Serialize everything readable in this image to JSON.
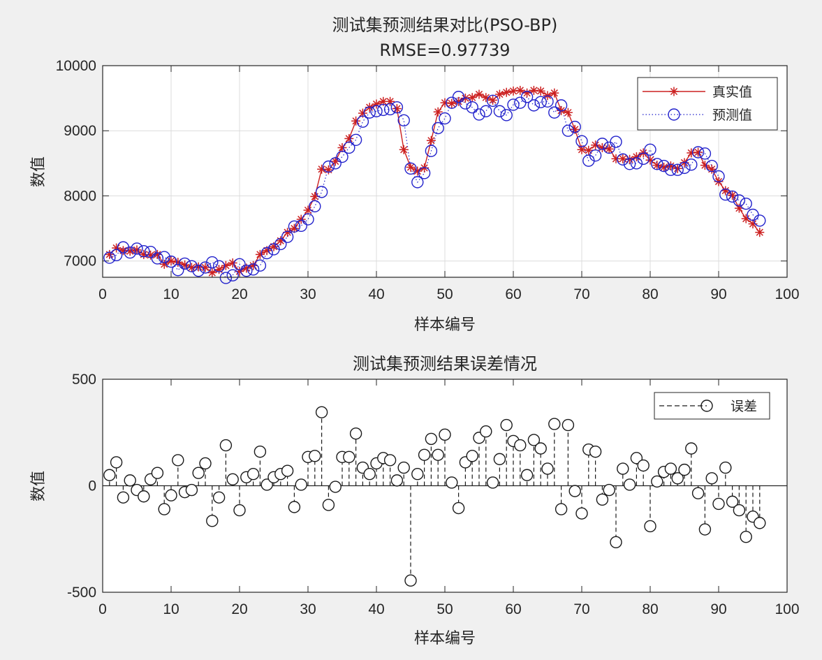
{
  "chart_data": [
    {
      "type": "line",
      "title": "测试集预测结果对比(PSO-BP)",
      "subtitle": "RMSE=0.97739",
      "xlabel": "样本编号",
      "ylabel": "数值",
      "xlim": [
        0,
        100
      ],
      "ylim": [
        6750,
        10000
      ],
      "xticks": [
        0,
        10,
        20,
        30,
        40,
        50,
        60,
        70,
        80,
        90,
        100
      ],
      "yticks": [
        7000,
        8000,
        9000,
        10000
      ],
      "grid": true,
      "legend_position": "top-right",
      "series": [
        {
          "name": "真实值",
          "color": "#cc2020",
          "style": "solid",
          "marker": "asterisk",
          "values": [
            7100,
            7200,
            7160,
            7150,
            7170,
            7100,
            7090,
            7100,
            6950,
            7000,
            6980,
            6940,
            6900,
            6910,
            6900,
            6820,
            6870,
            6930,
            6970,
            6840,
            6890,
            6930,
            7100,
            7160,
            7220,
            7310,
            7440,
            7500,
            7640,
            7780,
            7990,
            8410,
            8400,
            8530,
            8740,
            8880,
            9150,
            9270,
            9360,
            9410,
            9450,
            9450,
            9340,
            8710,
            8440,
            8380,
            8430,
            8850,
            9290,
            9430,
            9420,
            9450,
            9500,
            9510,
            9560,
            9510,
            9470,
            9560,
            9590,
            9610,
            9620,
            9580,
            9620,
            9610,
            9540,
            9580,
            9310,
            9280,
            9020,
            8710,
            8700,
            8780,
            8740,
            8720,
            8570,
            8570,
            8560,
            8600,
            8660,
            8550,
            8470,
            8440,
            8460,
            8420,
            8510,
            8660,
            8670,
            8470,
            8410,
            8220,
            8080,
            8010,
            7810,
            7650,
            7570,
            7440
          ]
        },
        {
          "name": "预测值",
          "color": "#2222cc",
          "style": "dotted",
          "marker": "circle",
          "values": [
            7050,
            7090,
            7210,
            7130,
            7190,
            7150,
            7140,
            7040,
            7060,
            6990,
            6860,
            6960,
            6920,
            6850,
            6900,
            6980,
            6920,
            6740,
            6780,
            6950,
            6850,
            6870,
            6930,
            7120,
            7180,
            7260,
            7370,
            7530,
            7540,
            7640,
            7840,
            8060,
            8450,
            8500,
            8600,
            8740,
            8860,
            9140,
            9280,
            9300,
            9320,
            9330,
            9360,
            9160,
            8420,
            8210,
            8350,
            8690,
            9040,
            9190,
            9430,
            9520,
            9420,
            9360,
            9250,
            9300,
            9460,
            9300,
            9240,
            9400,
            9430,
            9520,
            9390,
            9440,
            9450,
            9280,
            9390,
            9000,
            9060,
            8840,
            8540,
            8620,
            8800,
            8740,
            8830,
            8560,
            8490,
            8500,
            8570,
            8710,
            8490,
            8460,
            8400,
            8400,
            8430,
            8480,
            8670,
            8650,
            8460,
            8300,
            8020,
            7990,
            7930,
            7880,
            7710,
            7620
          ]
        }
      ]
    },
    {
      "type": "stem",
      "title": "测试集预测结果误差情况",
      "xlabel": "样本编号",
      "ylabel": "数值",
      "xlim": [
        0,
        100
      ],
      "ylim": [
        -500,
        500
      ],
      "xticks": [
        0,
        10,
        20,
        30,
        40,
        50,
        60,
        70,
        80,
        90,
        100
      ],
      "yticks": [
        -500,
        0,
        500
      ],
      "grid": false,
      "legend_position": "top-right",
      "series": [
        {
          "name": "误差",
          "color": "#1a1a1a",
          "style": "dashed",
          "marker": "circle",
          "values": [
            50,
            110,
            -55,
            25,
            -20,
            -50,
            30,
            60,
            -110,
            -45,
            120,
            -30,
            -20,
            60,
            105,
            -165,
            -55,
            190,
            30,
            -115,
            40,
            55,
            160,
            5,
            40,
            55,
            70,
            -100,
            5,
            135,
            140,
            345,
            -90,
            -5,
            135,
            135,
            245,
            85,
            55,
            105,
            130,
            120,
            25,
            85,
            -445,
            55,
            145,
            220,
            145,
            240,
            15,
            -105,
            110,
            140,
            225,
            255,
            15,
            125,
            285,
            210,
            190,
            50,
            215,
            175,
            80,
            290,
            -110,
            285,
            -25,
            -130,
            170,
            160,
            -65,
            -20,
            -265,
            80,
            5,
            130,
            95,
            -190,
            20,
            65,
            80,
            35,
            75,
            175,
            -35,
            -205,
            35,
            -85,
            85,
            -75,
            -115,
            -240,
            -145,
            -175
          ]
        }
      ]
    }
  ]
}
